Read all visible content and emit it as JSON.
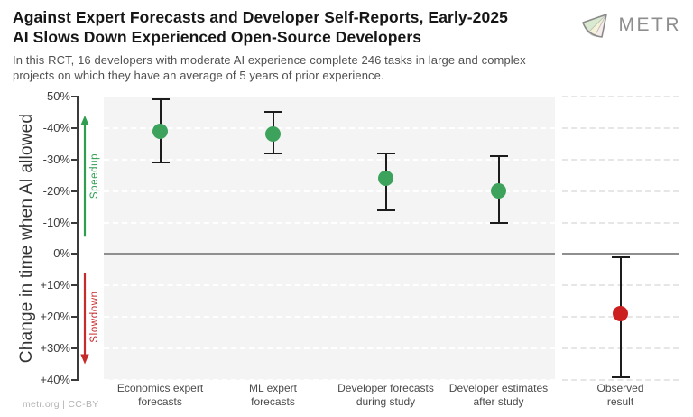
{
  "header": {
    "logo_text": "METR"
  },
  "footer": {
    "credit": "metr.org | CC-BY"
  },
  "colors": {
    "point_green": "#3ca25c",
    "point_red": "#cc1f1f",
    "speedup_green": "#2f9e50",
    "slowdown_red": "#c62b2b",
    "panel_gray": "#f4f4f4",
    "grid_on_gray": "#ffffff",
    "grid_on_white": "#e6e6e6",
    "zero_line_gray": "#8f8f8f",
    "errorbar_black": "#1c1c1c",
    "axis_dark": "#3a3a3a"
  },
  "chart_data": {
    "type": "scatter",
    "title": "Against Expert Forecasts and Developer Self-Reports, Early-2025 AI Slows Down Experienced Open-Source Developers",
    "title_lines": [
      "Against Expert Forecasts and Developer Self-Reports, Early-2025",
      "AI Slows Down Experienced Open-Source Developers"
    ],
    "subtitle_lines": [
      "In this RCT, 16 developers with moderate AI experience complete 246 tasks in large and complex",
      "projects on which they have an average of 5 years of prior experience."
    ],
    "xlabel": "",
    "ylabel": "Change in time when AI allowed",
    "unit": "%",
    "ylim": [
      -50,
      40
    ],
    "ylim_top": -50,
    "ylim_bottom": 40,
    "y_axis_note": "negative values (speedup) plotted upward, positive (slowdown) downward",
    "grid": "horizontal dashed",
    "yticks": [
      {
        "value": -50,
        "label": "-50%"
      },
      {
        "value": -40,
        "label": "-40%"
      },
      {
        "value": -30,
        "label": "-30%"
      },
      {
        "value": -20,
        "label": "-20%"
      },
      {
        "value": -10,
        "label": "-10%"
      },
      {
        "value": 0,
        "label": "0%"
      },
      {
        "value": 10,
        "label": "+10%"
      },
      {
        "value": 20,
        "label": "+20%"
      },
      {
        "value": 30,
        "label": "+30%"
      },
      {
        "value": 40,
        "label": "+40%"
      }
    ],
    "categories": [
      "Economics expert forecasts",
      "ML expert forecasts",
      "Developer forecasts during study",
      "Developer estimates after study",
      "Observed result"
    ],
    "points": [
      {
        "category": "Economics expert forecasts",
        "label_lines": [
          "Economics expert",
          "forecasts"
        ],
        "value": -39,
        "ci_low": -49,
        "ci_high": -29,
        "group": "forecast"
      },
      {
        "category": "ML expert forecasts",
        "label_lines": [
          "ML expert",
          "forecasts"
        ],
        "value": -38,
        "ci_low": -45,
        "ci_high": -32,
        "group": "forecast"
      },
      {
        "category": "Developer forecasts during study",
        "label_lines": [
          "Developer forecasts",
          "during study"
        ],
        "value": -24,
        "ci_low": -32,
        "ci_high": -14,
        "group": "forecast"
      },
      {
        "category": "Developer estimates after study",
        "label_lines": [
          "Developer estimates",
          "after study"
        ],
        "value": -20,
        "ci_low": -31,
        "ci_high": -10,
        "group": "forecast"
      },
      {
        "category": "Observed result",
        "label_lines": [
          "Observed",
          "result"
        ],
        "value": 19,
        "ci_low": 1,
        "ci_high": 39,
        "group": "observed"
      }
    ],
    "annotations": {
      "speedup": {
        "label": "Speedup",
        "from": -5.5,
        "to": -44
      },
      "slowdown": {
        "label": "Slowdown",
        "from": 6,
        "to": 35
      }
    }
  }
}
